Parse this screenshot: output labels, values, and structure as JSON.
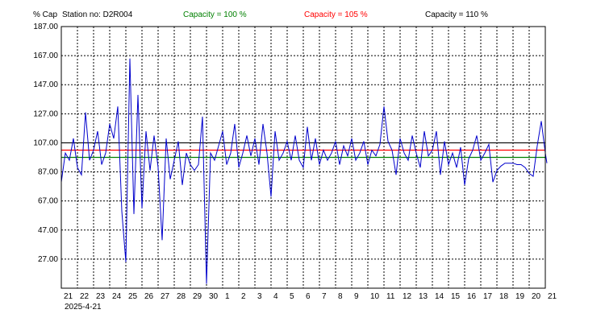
{
  "header": {
    "y_unit": "% Cap",
    "station": "Station no: D2R004",
    "cap100": "Capacity = 100 %",
    "cap105": "Capacity = 105 %",
    "cap110": "Capacity = 110 %"
  },
  "colors": {
    "cap100": "#008000",
    "cap105": "#ff0000",
    "cap110": "#000000",
    "series": "#0000cc",
    "grid": "#000000"
  },
  "chart_data": {
    "type": "line",
    "ylim": [
      7,
      187
    ],
    "y_ticks": [
      "187.00",
      "167.00",
      "147.00",
      "127.00",
      "107.00",
      "87.00",
      "67.00",
      "47.00",
      "27.00"
    ],
    "y_tick_values": [
      187,
      167,
      147,
      127,
      107,
      87,
      67,
      47,
      27
    ],
    "x_tick_labels": [
      "21",
      "22",
      "23",
      "24",
      "25",
      "26",
      "27",
      "28",
      "29",
      "30",
      "1",
      "2",
      "3",
      "4",
      "5",
      "6",
      "7",
      "8",
      "9",
      "10",
      "11",
      "12",
      "13",
      "14",
      "15",
      "16",
      "17",
      "18",
      "19",
      "20",
      "21"
    ],
    "x_start_label": "2025-4-21",
    "reference_lines": [
      {
        "name": "Capacity = 100 %",
        "value": 97,
        "color": "#008000"
      },
      {
        "name": "Capacity = 105 %",
        "value": 102,
        "color": "#ff0000"
      },
      {
        "name": "Capacity = 110 %",
        "value": 107,
        "color": "#000000"
      }
    ],
    "series": [
      {
        "x": [
          0.0,
          0.25,
          0.5,
          0.75,
          1.0,
          1.25,
          1.5,
          1.75,
          2.0,
          2.25,
          2.5,
          2.75,
          3.0,
          3.25,
          3.5,
          3.75,
          4.0,
          4.25,
          4.5,
          4.75,
          5.0,
          5.25,
          5.5,
          5.75,
          6.0,
          6.25,
          6.5,
          6.75,
          7.0,
          7.25,
          7.5,
          7.75,
          8.0,
          8.25,
          8.5,
          8.75,
          9.0,
          9.25,
          9.5,
          9.75,
          10.0,
          10.25,
          10.5,
          10.75,
          11.0,
          11.25,
          11.5,
          11.75,
          12.0,
          12.25,
          12.5,
          12.75,
          13.0,
          13.25,
          13.5,
          13.75,
          14.0,
          14.25,
          14.5,
          14.75,
          15.0,
          15.25,
          15.5,
          15.75,
          16.0,
          16.25,
          16.5,
          16.75,
          17.0,
          17.25,
          17.5,
          17.75,
          18.0,
          18.25,
          18.5,
          18.75,
          19.0,
          19.25,
          19.5,
          19.75,
          20.0,
          20.25,
          20.5,
          20.75,
          21.0,
          21.25,
          21.5,
          21.75,
          22.0,
          22.25,
          22.5,
          22.75,
          23.0,
          23.25,
          23.5,
          23.75,
          24.0,
          24.25,
          24.5,
          24.75,
          25.0,
          25.25,
          25.5,
          25.75,
          26.0,
          26.25,
          26.5,
          26.75,
          27.0,
          27.25,
          27.5,
          27.75,
          28.0,
          28.25,
          28.5,
          28.75,
          29.0,
          29.25,
          29.5,
          29.75,
          30.0,
          30.1
        ],
        "values": [
          80,
          100,
          95,
          110,
          90,
          85,
          128,
          95,
          102,
          115,
          92,
          100,
          120,
          110,
          132,
          60,
          25,
          165,
          58,
          140,
          62,
          115,
          88,
          112,
          90,
          40,
          110,
          82,
          95,
          108,
          78,
          100,
          92,
          88,
          92,
          125,
          10,
          100,
          95,
          105,
          115,
          92,
          100,
          120,
          90,
          100,
          112,
          98,
          110,
          92,
          120,
          100,
          70,
          115,
          95,
          100,
          108,
          95,
          112,
          95,
          90,
          118,
          95,
          110,
          92,
          102,
          95,
          100,
          108,
          92,
          105,
          98,
          110,
          95,
          100,
          108,
          92,
          102,
          98,
          106,
          132,
          108,
          102,
          85,
          110,
          100,
          95,
          112,
          100,
          90,
          115,
          98,
          102,
          115,
          85,
          108,
          92,
          100,
          90,
          104,
          78,
          96,
          102,
          112,
          95,
          100,
          106,
          80,
          88,
          91,
          93,
          93,
          93,
          92,
          92,
          90,
          86,
          84,
          105,
          122,
          100,
          93
        ]
      }
    ]
  }
}
